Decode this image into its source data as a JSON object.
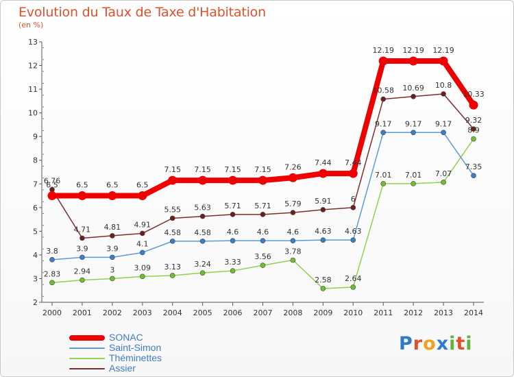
{
  "header": {
    "title": "Evolution du Taux de Taxe d'Habitation",
    "unit_note": "(en %)"
  },
  "logo": {
    "text": "Proxiti",
    "letters": [
      "P",
      "r",
      "o",
      "x",
      "i",
      "t",
      "i"
    ],
    "colors": [
      "#2e7bc6",
      "#e0502a",
      "#f0a21d",
      "#2e7bc6",
      "#5fb23a",
      "#e0502a",
      "#5fb23a"
    ]
  },
  "chart_data": {
    "type": "line",
    "x": [
      2000,
      2001,
      2002,
      2003,
      2004,
      2005,
      2006,
      2007,
      2008,
      2009,
      2010,
      2011,
      2012,
      2013,
      2014
    ],
    "ylim": [
      2,
      13
    ],
    "yticks": [
      2,
      3,
      4,
      5,
      6,
      7,
      8,
      9,
      10,
      11,
      12,
      13
    ],
    "grid": false,
    "legend_position": "bottom-left",
    "series": [
      {
        "name": "Théminettes",
        "color": "#8fd14f",
        "marker_color": "#6fbf2f",
        "line_width": 1.5,
        "values": [
          2.83,
          2.94,
          3,
          3.09,
          3.13,
          3.24,
          3.33,
          3.56,
          3.78,
          2.58,
          2.64,
          7.01,
          7.01,
          7.07,
          8.9
        ],
        "labels": [
          "2.83",
          "2.94",
          "3",
          "3.09",
          "3.13",
          "3.24",
          "3.33",
          "3.56",
          "3.78",
          "2.58",
          "2.64",
          "7.01",
          "7.01",
          "7.07",
          "8.9"
        ]
      },
      {
        "name": "Saint-Simon",
        "color": "#5b9bd5",
        "marker_color": "#3a7fc4",
        "line_width": 1.5,
        "values": [
          3.8,
          3.9,
          3.9,
          4.1,
          4.58,
          4.58,
          4.6,
          4.6,
          4.6,
          4.63,
          4.63,
          9.17,
          9.17,
          9.17,
          7.35
        ],
        "labels": [
          "3.8",
          "3.9",
          "3.9",
          "4.1",
          "4.58",
          "4.58",
          "4.6",
          "4.6",
          "4.6",
          "4.63",
          "4.63",
          "9.17",
          "9.17",
          "9.17",
          "7.35"
        ]
      },
      {
        "name": "Assier",
        "color": "#7b2d2d",
        "marker_color": "#6b1f1f",
        "line_width": 1.5,
        "values": [
          6.76,
          4.71,
          4.81,
          4.91,
          5.55,
          5.63,
          5.71,
          5.71,
          5.79,
          5.91,
          6,
          10.58,
          10.69,
          10.8,
          9.32
        ],
        "labels": [
          "6.76",
          "4.71",
          "4.81",
          "4.91",
          "5.55",
          "5.63",
          "5.71",
          "5.71",
          "5.79",
          "5.91",
          "6",
          "10.58",
          "10.69",
          "10.8",
          "9.32"
        ]
      },
      {
        "name": "SONAC",
        "color": "#ee0000",
        "marker_color": "#ee0000",
        "line_width": 8,
        "values": [
          6.5,
          6.5,
          6.5,
          6.5,
          7.15,
          7.15,
          7.15,
          7.15,
          7.26,
          7.44,
          7.44,
          12.19,
          12.19,
          12.19,
          10.33
        ],
        "labels": [
          "6.5",
          "6.5",
          "6.5",
          "6.5",
          "7.15",
          "7.15",
          "7.15",
          "7.15",
          "7.26",
          "7.44",
          "7.44",
          "12.19",
          "12.19",
          "12.19",
          "10.33"
        ]
      }
    ],
    "legend": [
      "SONAC",
      "Saint-Simon",
      "Théminettes",
      "Assier"
    ]
  }
}
